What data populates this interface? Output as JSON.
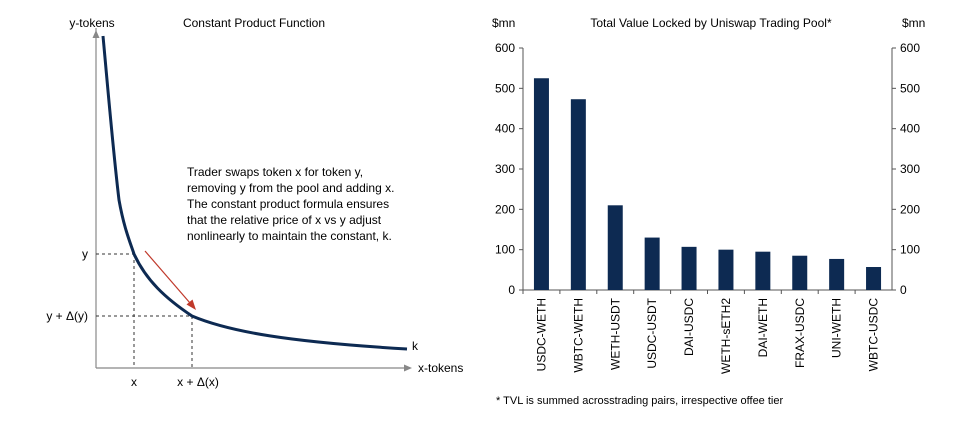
{
  "left_chart": {
    "title": "Constant Product Function",
    "y_axis_label": "y-tokens",
    "x_axis_label": "x-tokens",
    "curve_label": "k",
    "y_tick_1": "y",
    "y_tick_2": "y + Δ(y)",
    "x_tick_1": "x",
    "x_tick_2": "x + Δ(x)",
    "annotation_lines": [
      "Trader  swaps token  x for token  y,",
      "removing  y from the pool and  adding  x.",
      "The  constant product formula  ensures",
      "that the relative  price of x vs  y adjust",
      "nonlinearly to maintain the constant,  k."
    ],
    "arrow_color": "#c0392b",
    "curve_color": "#0d2a52"
  },
  "chart_data": {
    "type": "bar",
    "title": "Total Value Locked by Uniswap Trading Pool*",
    "ylabel": "$mn",
    "ylabel_right": "$mn",
    "categories": [
      "USDC-WETH",
      "WBTC-WETH",
      "WETH-USDT",
      "USDC-USDT",
      "DAI-USDC",
      "WETH-sETH2",
      "DAI-WETH",
      "FRAX-USDC",
      "UNI-WETH",
      "WBTC-USDC"
    ],
    "values": [
      525,
      473,
      210,
      130,
      107,
      100,
      95,
      85,
      77,
      57
    ],
    "ylim": [
      0,
      600
    ],
    "yticks": [
      "0",
      "100",
      "200",
      "300",
      "400",
      "500",
      "600"
    ],
    "bar_color": "#0d2a52",
    "footnote": "* TVL is summed acrosstrading pairs, irrespective offee tier"
  }
}
